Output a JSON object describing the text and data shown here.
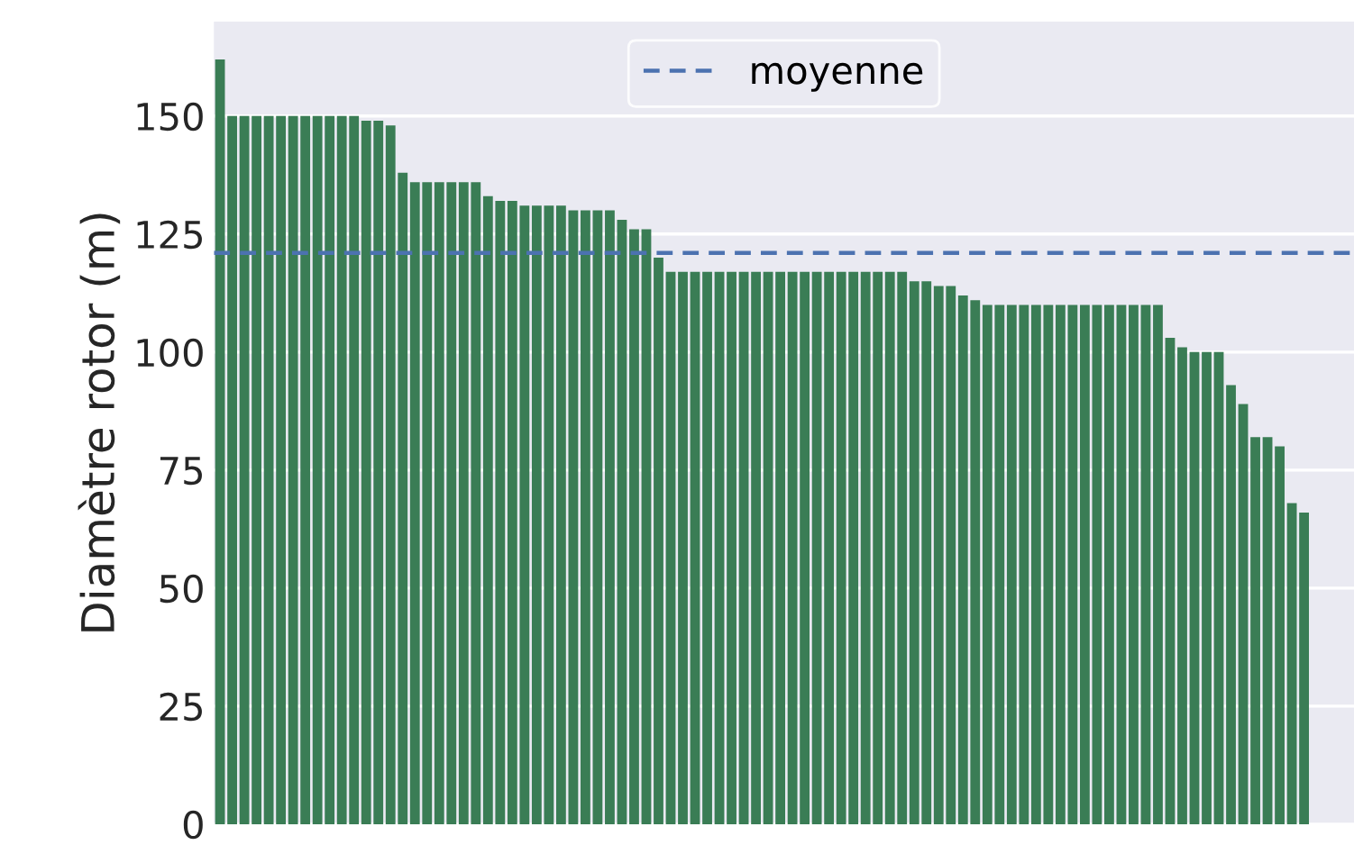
{
  "chart_data": {
    "type": "bar",
    "ylabel": "Diamètre rotor (m)",
    "categories": [
      null,
      null,
      null,
      null,
      null,
      null,
      null,
      null,
      null,
      null,
      null,
      null,
      null,
      null,
      null,
      null,
      null,
      null,
      null,
      null,
      null,
      null,
      null,
      null,
      null,
      null,
      null,
      null,
      null,
      null,
      null,
      null,
      null,
      null,
      null,
      null,
      null,
      null,
      null,
      null,
      null,
      null,
      null,
      null,
      null,
      null,
      null,
      null,
      null,
      null,
      null,
      null,
      null,
      null,
      null,
      null,
      null,
      null,
      null,
      null,
      null,
      null,
      null,
      null,
      null,
      null,
      null,
      null,
      null,
      null,
      null,
      null,
      null,
      null,
      null,
      null,
      null,
      null,
      null,
      null,
      null,
      null,
      null,
      null,
      null,
      null,
      null,
      null,
      null,
      null
    ],
    "values": [
      162,
      150,
      150,
      150,
      150,
      150,
      150,
      150,
      150,
      150,
      150,
      150,
      149,
      149,
      148,
      138,
      136,
      136,
      136,
      136,
      136,
      136,
      133,
      132,
      132,
      131,
      131,
      131,
      131,
      130,
      130,
      130,
      130,
      128,
      126,
      126,
      120,
      117,
      117,
      117,
      117,
      117,
      117,
      117,
      117,
      117,
      117,
      117,
      117,
      117,
      117,
      117,
      117,
      117,
      117,
      117,
      117,
      115,
      115,
      114,
      114,
      112,
      111,
      110,
      110,
      110,
      110,
      110,
      110,
      110,
      110,
      110,
      110,
      110,
      110,
      110,
      110,
      110,
      103,
      101,
      100,
      100,
      100,
      93,
      89,
      82,
      82,
      80,
      68,
      66
    ],
    "color": "#3a7d55",
    "ylim": [
      0,
      170
    ],
    "yticks": [
      0,
      25,
      50,
      75,
      100,
      125,
      150
    ],
    "ref_lines": [
      {
        "axis": "y",
        "value": 121,
        "label": "moyenne",
        "color": "#4c72b0",
        "line_style": "dashed"
      }
    ],
    "grid": "y",
    "legend": "top",
    "tick_labels": "y"
  }
}
